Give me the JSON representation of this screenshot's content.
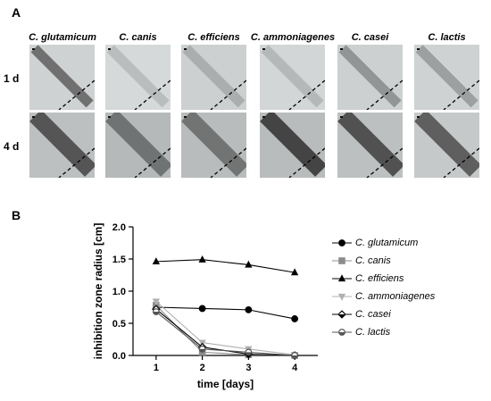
{
  "panel_a": {
    "label": "A",
    "columns": [
      "C. glutamicum",
      "C. canis",
      "C. efficiens",
      "C. ammoniagenes",
      "C. casei",
      "C. lactis"
    ],
    "rows": [
      "1 d",
      "4 d"
    ],
    "tiles": [
      [
        {
          "band": "#6a6a6a",
          "bg": "#cfd2d2"
        },
        {
          "band": "#b8bcbc",
          "bg": "#d6d9d9"
        },
        {
          "band": "#a8acac",
          "bg": "#cdd0d0"
        },
        {
          "band": "#b3b6b6",
          "bg": "#d3d6d6"
        },
        {
          "band": "#8e9191",
          "bg": "#cdd0d0"
        },
        {
          "band": "#9a9d9d",
          "bg": "#cfd2d2"
        }
      ],
      [
        {
          "band": "#4f4f4f",
          "bg": "#bcc0c0"
        },
        {
          "band": "#6c6f6f",
          "bg": "#b5b9b9"
        },
        {
          "band": "#6e7070",
          "bg": "#b8bcbc"
        },
        {
          "band": "#3d3d3d",
          "bg": "#b9bcbc"
        },
        {
          "band": "#4b4b4b",
          "bg": "#bcc0c0"
        },
        {
          "band": "#5a5a5a",
          "bg": "#c6c9c9"
        }
      ]
    ]
  },
  "panel_b": {
    "label": "B"
  },
  "chart_data": {
    "type": "line",
    "title": "",
    "xlabel": "time [days]",
    "ylabel": "inhibition zone radius [cm]",
    "x": [
      1,
      2,
      3,
      4
    ],
    "xlim": [
      0.5,
      4.5
    ],
    "ylim": [
      0,
      2.0
    ],
    "xticks": [
      "1",
      "2",
      "3",
      "4"
    ],
    "yticks": [
      "0.0",
      "0.5",
      "1.0",
      "1.5",
      "2.0"
    ],
    "legend_position": "right",
    "series": [
      {
        "name": "C. glutamicum",
        "values": [
          0.75,
          0.73,
          0.71,
          0.57
        ],
        "marker": "circle",
        "color": "#000000",
        "fill": "#000000"
      },
      {
        "name": "C. canis",
        "values": [
          0.78,
          0.05,
          0.01,
          0.0
        ],
        "marker": "square",
        "color": "#8c8c8c",
        "fill": "#8c8c8c"
      },
      {
        "name": "C. efficiens",
        "values": [
          1.46,
          1.49,
          1.41,
          1.29
        ],
        "marker": "triangle-up",
        "color": "#000000",
        "fill": "#000000"
      },
      {
        "name": "C. ammoniagenes",
        "values": [
          0.84,
          0.2,
          0.1,
          0.01
        ],
        "marker": "triangle-down",
        "color": "#b0b0b0",
        "fill": "#b0b0b0"
      },
      {
        "name": "C. casei",
        "values": [
          0.72,
          0.13,
          0.02,
          0.0
        ],
        "marker": "diamond-half",
        "color": "#000000",
        "fill": "#ffffff"
      },
      {
        "name": "C. lactis",
        "values": [
          0.68,
          0.1,
          0.05,
          0.0
        ],
        "marker": "circle-half",
        "color": "#555555",
        "fill": "#ffffff"
      }
    ]
  }
}
